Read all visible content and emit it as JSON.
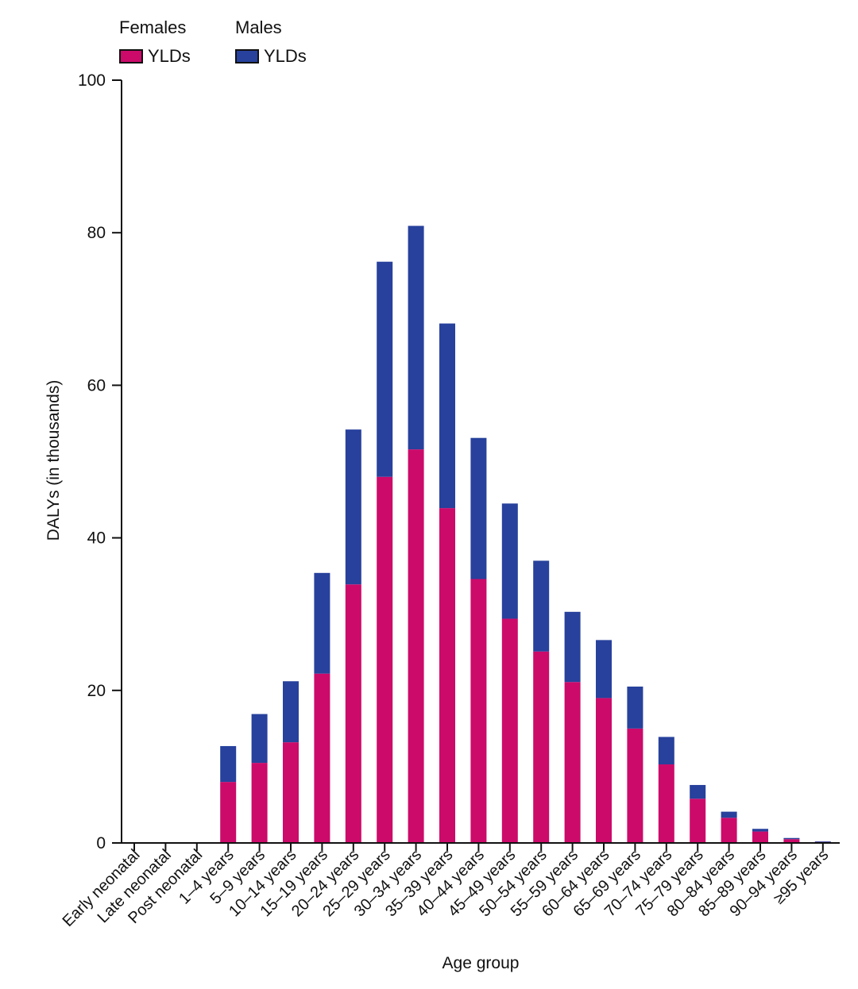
{
  "legend": {
    "females": {
      "title": "Females",
      "label": "YLDs",
      "color": "#cc0a6a"
    },
    "males": {
      "title": "Males",
      "label": "YLDs",
      "color": "#27419c"
    }
  },
  "chart_data": {
    "type": "bar",
    "stacked": true,
    "xlabel": "Age group",
    "ylabel": "DALYs (in thousands)",
    "ylim": [
      0,
      100
    ],
    "yticks": [
      0,
      20,
      40,
      60,
      80,
      100
    ],
    "categories": [
      "Early neonatal",
      "Late neonatal",
      "Post neonatal",
      "1–4 years",
      "5–9 years",
      "10–14 years",
      "15–19 years",
      "20–24 years",
      "25–29 years",
      "30–34 years",
      "35–39 years",
      "40–44 years",
      "45–49 years",
      "50–54 years",
      "55–59 years",
      "60–64 years",
      "65–69 years",
      "70–74 years",
      "75–79 years",
      "80–84 years",
      "85–89 years",
      "90–94 years",
      "≥95 years"
    ],
    "series": [
      {
        "name": "Females YLDs",
        "color": "#cc0a6a",
        "values": [
          0,
          0,
          0,
          8.0,
          10.5,
          13.2,
          22.2,
          33.9,
          48.0,
          51.6,
          43.9,
          34.6,
          29.4,
          25.1,
          21.1,
          19.0,
          15.0,
          10.3,
          5.8,
          3.3,
          1.5,
          0.5,
          0.15
        ]
      },
      {
        "name": "Males YLDs",
        "color": "#27419c",
        "values": [
          0,
          0,
          0,
          4.7,
          6.4,
          8.0,
          13.2,
          20.3,
          28.2,
          29.3,
          24.2,
          18.5,
          15.1,
          11.9,
          9.2,
          7.6,
          5.5,
          3.6,
          1.8,
          0.8,
          0.35,
          0.15,
          0.05
        ]
      }
    ],
    "grid": false,
    "legend_position": "top-left"
  }
}
